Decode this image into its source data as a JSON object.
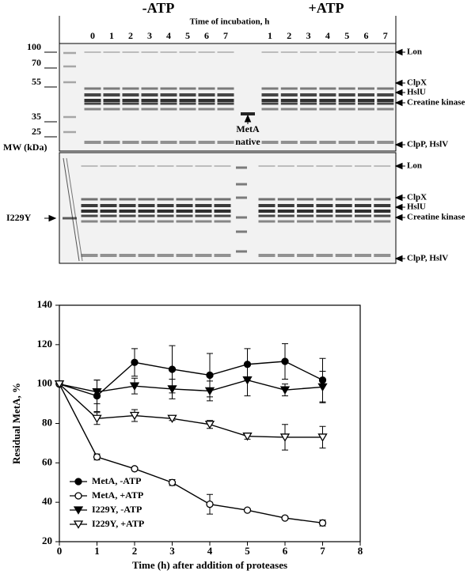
{
  "gel": {
    "title_minus": "-ATP",
    "title_plus": "+ATP",
    "time_label": "Time of incubation, h",
    "lanes_minus": [
      "0",
      "1",
      "2",
      "3",
      "4",
      "5",
      "6",
      "7"
    ],
    "lanes_plus": [
      "1",
      "2",
      "3",
      "4",
      "5",
      "6",
      "7"
    ],
    "mw_markers": [
      "100",
      "70",
      "55",
      "35",
      "25"
    ],
    "mw_label": "MW (kDa)",
    "native_label": [
      "MetA",
      "native"
    ],
    "mutant_label": "I229Y",
    "band_labels_top": [
      "Lon",
      "ClpX",
      "HslU",
      "Creatine kinase",
      "ClpP, HslV"
    ],
    "band_labels_bottom": [
      "Lon",
      "ClpX",
      "HslU",
      "Creatine kinase",
      "ClpP, HslV"
    ]
  },
  "chart_data": {
    "type": "line",
    "x_label": "Time (h) after addition of proteases",
    "y_label": "Residual MetA, %",
    "x": [
      0,
      1,
      2,
      3,
      4,
      5,
      6,
      7
    ],
    "xlim": [
      0,
      8
    ],
    "xticks": [
      0,
      1,
      2,
      3,
      4,
      5,
      6,
      7,
      8
    ],
    "ylim": [
      20,
      140
    ],
    "yticks": [
      20,
      40,
      60,
      80,
      100,
      120,
      140
    ],
    "legend": "lower left",
    "series": [
      {
        "name": "MetA, -ATP",
        "color": "#000000",
        "marker": "circle",
        "filled": true,
        "values": [
          100,
          94,
          111,
          107.5,
          104.5,
          110,
          111.5,
          102
        ],
        "errors": [
          0,
          8,
          7,
          12,
          11,
          8,
          9,
          11
        ]
      },
      {
        "name": "MetA, +ATP",
        "color": "#000000",
        "marker": "circle",
        "filled": false,
        "values": [
          100,
          63,
          57,
          50,
          39,
          36,
          32,
          29.5
        ],
        "errors": [
          0,
          1.5,
          0.5,
          1.5,
          5,
          0.5,
          0.5,
          1.5
        ]
      },
      {
        "name": "I229Y, -ATP",
        "color": "#000000",
        "marker": "triangle-down",
        "filled": true,
        "values": [
          100,
          96,
          99,
          97.5,
          96.5,
          102,
          97,
          98.5
        ],
        "errors": [
          0,
          6,
          4,
          5,
          5,
          8,
          3,
          8
        ]
      },
      {
        "name": "I229Y, +ATP",
        "color": "#000000",
        "marker": "triangle-down",
        "filled": false,
        "values": [
          100,
          82.5,
          84,
          82.5,
          79.5,
          73.5,
          73,
          73
        ],
        "errors": [
          0,
          3,
          3,
          1,
          2,
          1.5,
          6.5,
          5.5
        ]
      }
    ]
  }
}
